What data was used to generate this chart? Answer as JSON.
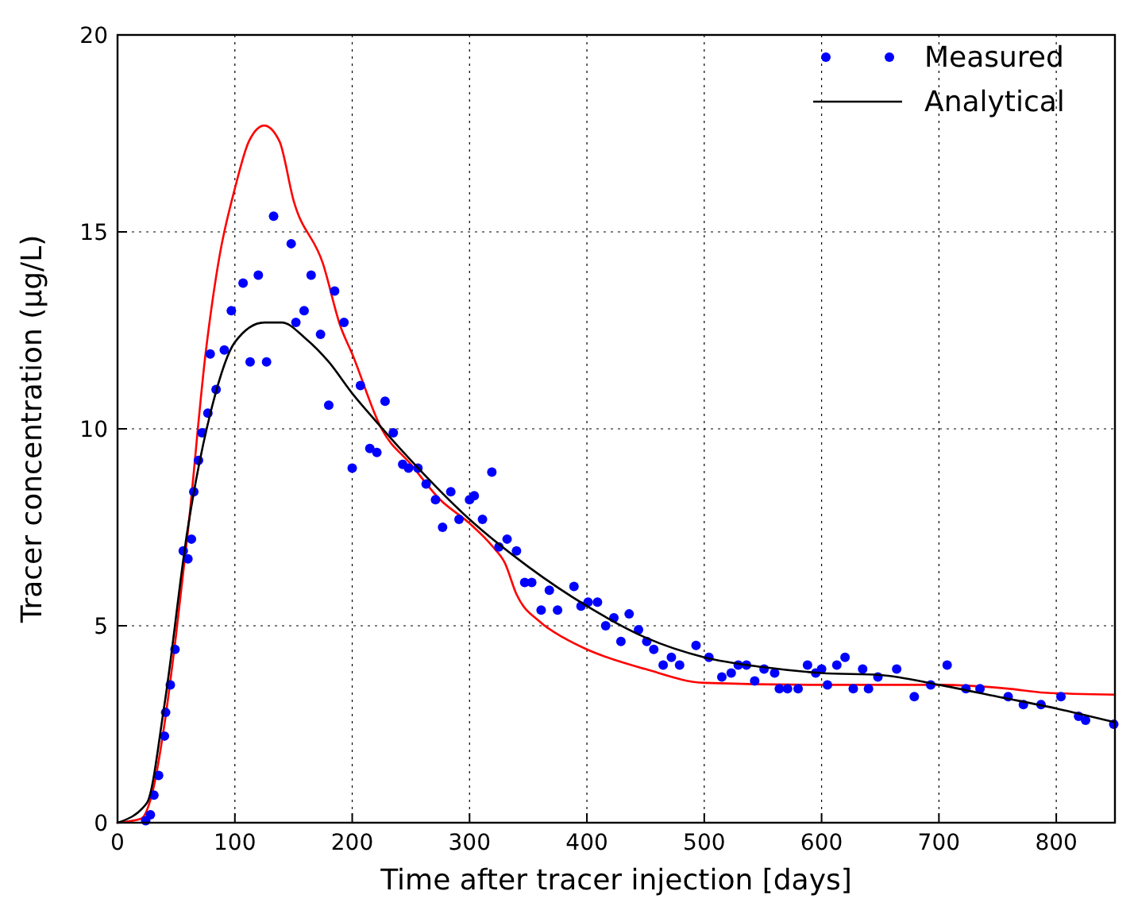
{
  "chart_data": {
    "type": "line",
    "xlabel": "Time after tracer injection [days]",
    "ylabel": "Tracer concentration (µg/L)",
    "xlim": [
      0,
      850
    ],
    "ylim": [
      0,
      20
    ],
    "xticks": [
      0,
      100,
      200,
      300,
      400,
      500,
      600,
      700,
      800
    ],
    "yticks": [
      0,
      5,
      10,
      15,
      20
    ],
    "grid": true,
    "legend": "top right",
    "series": [
      {
        "type": "line",
        "color": "#ff0000",
        "line_style": "solid",
        "marker": "none",
        "x": [
          0,
          20,
          30,
          40,
          50,
          60,
          75,
          87,
          100,
          112,
          125,
          138,
          150,
          175,
          190,
          200,
          225,
          250,
          275,
          300,
          320,
          330,
          340,
          360,
          380,
          400,
          450,
          500,
          600,
          700,
          760,
          790,
          850
        ],
        "values": [
          0,
          0.1,
          0.8,
          2.5,
          4.8,
          7.4,
          11.9,
          14.4,
          16.1,
          17.3,
          17.7,
          17.3,
          15.8,
          14.2,
          12.6,
          11.9,
          10.0,
          9.1,
          8.2,
          7.6,
          7.0,
          6.6,
          5.8,
          5.1,
          4.7,
          4.4,
          3.9,
          3.55,
          3.5,
          3.5,
          3.4,
          3.3,
          3.25
        ]
      },
      {
        "type": "scatter",
        "name": "Measured",
        "color": "#0000ff",
        "marker": "circle",
        "x": [
          24,
          28,
          31,
          35,
          40,
          41,
          45,
          49,
          56,
          60,
          63,
          65,
          69,
          72,
          77,
          79,
          84,
          91,
          97,
          107,
          113,
          120,
          127,
          133,
          148,
          152,
          159,
          165,
          173,
          180,
          185,
          193,
          200,
          207,
          215,
          221,
          228,
          235,
          243,
          248,
          256,
          263,
          271,
          277,
          284,
          291,
          300,
          304,
          311,
          319,
          325,
          332,
          340,
          347,
          353,
          361,
          368,
          375,
          389,
          395,
          401,
          409,
          416,
          423,
          429,
          436,
          444,
          451,
          457,
          465,
          472,
          479,
          493,
          504,
          515,
          523,
          529,
          536,
          543,
          551,
          560,
          564,
          571,
          580,
          588,
          595,
          600,
          605,
          613,
          620,
          627,
          635,
          640,
          648,
          664,
          679,
          693,
          707,
          723,
          735,
          759,
          772,
          787,
          804,
          819,
          825,
          849
        ],
        "values": [
          0.05,
          0.2,
          0.7,
          1.2,
          2.2,
          2.8,
          3.5,
          4.4,
          6.9,
          6.7,
          7.2,
          8.4,
          9.2,
          9.9,
          10.4,
          11.9,
          11.0,
          12.0,
          13.0,
          13.7,
          11.7,
          13.9,
          11.7,
          15.4,
          14.7,
          12.7,
          13.0,
          13.9,
          12.4,
          10.6,
          13.5,
          12.7,
          9.0,
          11.1,
          9.5,
          9.4,
          10.7,
          9.9,
          9.1,
          9.0,
          9.0,
          8.6,
          8.2,
          7.5,
          8.4,
          7.7,
          8.2,
          8.3,
          7.7,
          8.9,
          7.0,
          7.2,
          6.9,
          6.1,
          6.1,
          5.4,
          5.9,
          5.4,
          6.0,
          5.5,
          5.6,
          5.6,
          5.0,
          5.2,
          4.6,
          5.3,
          4.9,
          4.6,
          4.4,
          4.0,
          4.2,
          4.0,
          4.5,
          4.2,
          3.7,
          3.8,
          4.0,
          4.0,
          3.6,
          3.9,
          3.8,
          3.4,
          3.4,
          3.4,
          4.0,
          3.8,
          3.9,
          3.5,
          4.0,
          4.2,
          3.4,
          3.9,
          3.4,
          3.7,
          3.9,
          3.2,
          3.5,
          4.0,
          3.4,
          3.4,
          3.2,
          3.0,
          3.0,
          3.2,
          2.7,
          2.6,
          2.5
        ]
      },
      {
        "type": "line",
        "name": "Analytical",
        "color": "#000000",
        "line_style": "solid",
        "marker": "none",
        "x": [
          0,
          25,
          40,
          60,
          80,
          100,
          125,
          140,
          160,
          180,
          200,
          220,
          250,
          300,
          350,
          400,
          450,
          500,
          550,
          600,
          650,
          700,
          750,
          800,
          850
        ],
        "values": [
          0,
          0.5,
          3,
          7.5,
          10.5,
          12.2,
          12.7,
          12.7,
          12.3,
          11.7,
          10.9,
          10.2,
          9.2,
          7.7,
          6.5,
          5.5,
          4.7,
          4.2,
          3.95,
          3.8,
          3.75,
          3.5,
          3.2,
          2.9,
          2.55
        ]
      }
    ]
  }
}
